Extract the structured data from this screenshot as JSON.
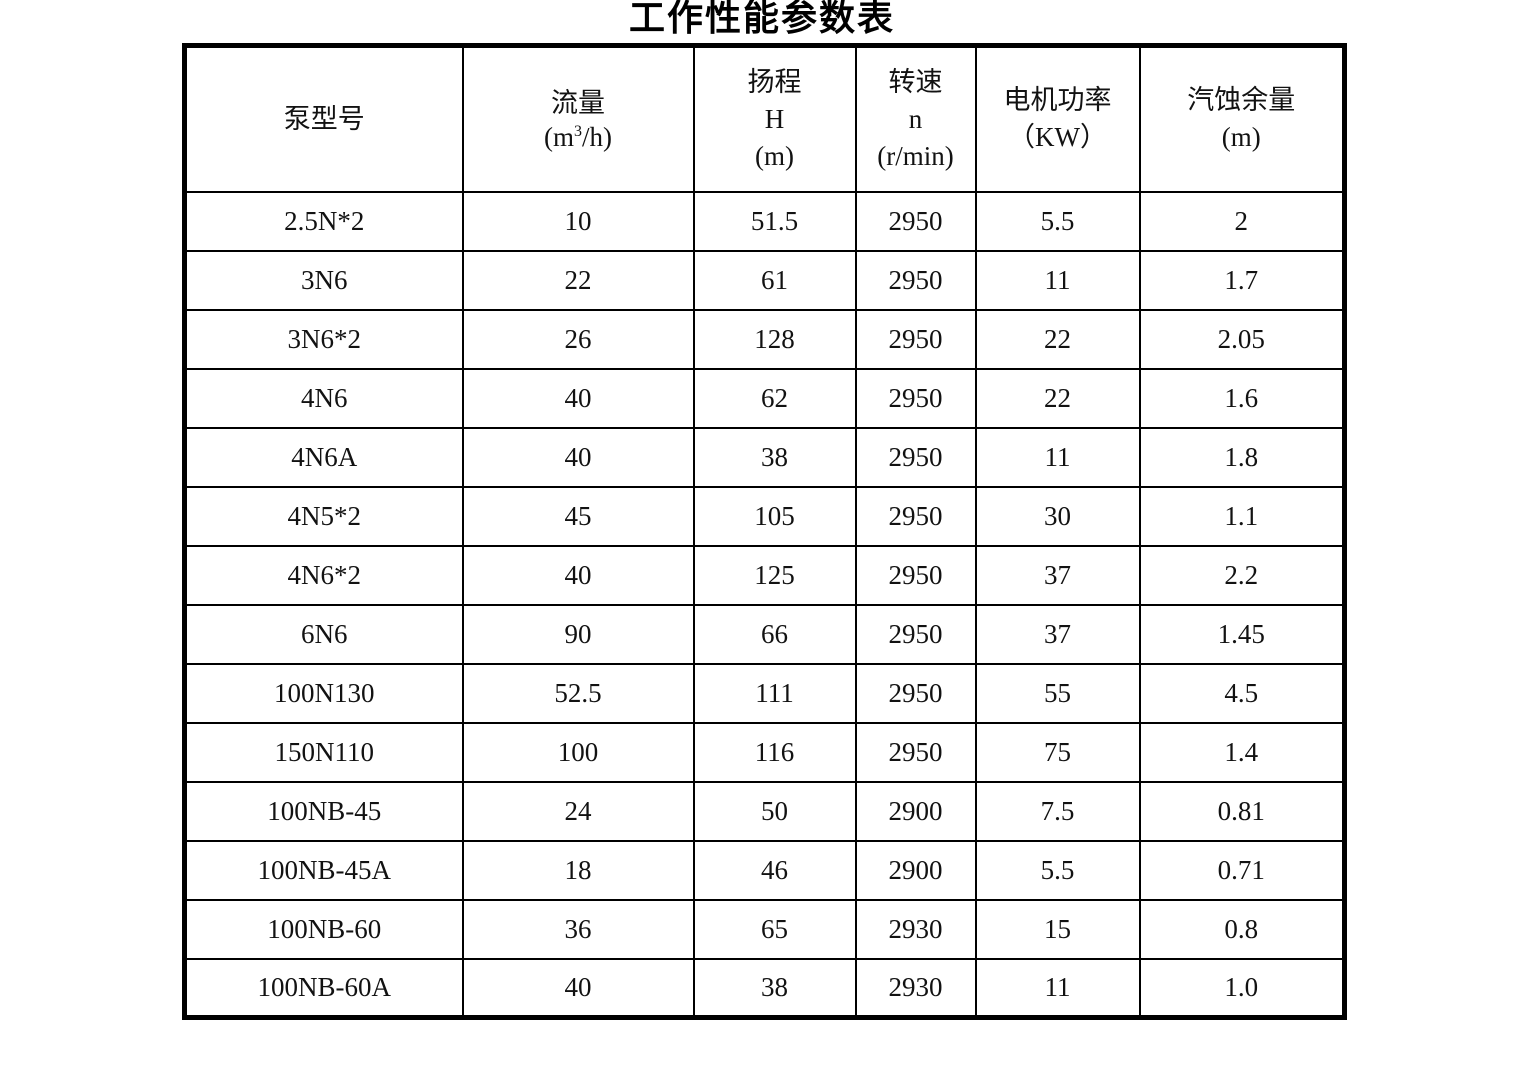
{
  "page": {
    "title": "工作性能参数表"
  },
  "table": {
    "headers": {
      "pump_model": "泵型号",
      "flow_label": "流量",
      "flow_unit_pre": "(m",
      "flow_unit_sup": "3",
      "flow_unit_post": "/h)",
      "head_label": "扬程\nH\n(m)",
      "speed_label": "转速\nn\n(r/min)",
      "power_label": "电机功率\n（KW）",
      "npsh_label": "汽蚀余量\n(m)"
    },
    "rows": [
      [
        "2.5N*2",
        "10",
        "51.5",
        "2950",
        "5.5",
        "2"
      ],
      [
        "3N6",
        "22",
        "61",
        "2950",
        "11",
        "1.7"
      ],
      [
        "3N6*2",
        "26",
        "128",
        "2950",
        "22",
        "2.05"
      ],
      [
        "4N6",
        "40",
        "62",
        "2950",
        "22",
        "1.6"
      ],
      [
        "4N6A",
        "40",
        "38",
        "2950",
        "11",
        "1.8"
      ],
      [
        "4N5*2",
        "45",
        "105",
        "2950",
        "30",
        "1.1"
      ],
      [
        "4N6*2",
        "40",
        "125",
        "2950",
        "37",
        "2.2"
      ],
      [
        "6N6",
        "90",
        "66",
        "2950",
        "37",
        "1.45"
      ],
      [
        "100N130",
        "52.5",
        "111",
        "2950",
        "55",
        "4.5"
      ],
      [
        "150N110",
        "100",
        "116",
        "2950",
        "75",
        "1.4"
      ],
      [
        "100NB-45",
        "24",
        "50",
        "2900",
        "7.5",
        "0.81"
      ],
      [
        "100NB-45A",
        "18",
        "46",
        "2900",
        "5.5",
        "0.71"
      ],
      [
        "100NB-60",
        "36",
        "65",
        "2930",
        "15",
        "0.8"
      ],
      [
        "100NB-60A",
        "40",
        "38",
        "2930",
        "11",
        "1.0"
      ]
    ]
  }
}
